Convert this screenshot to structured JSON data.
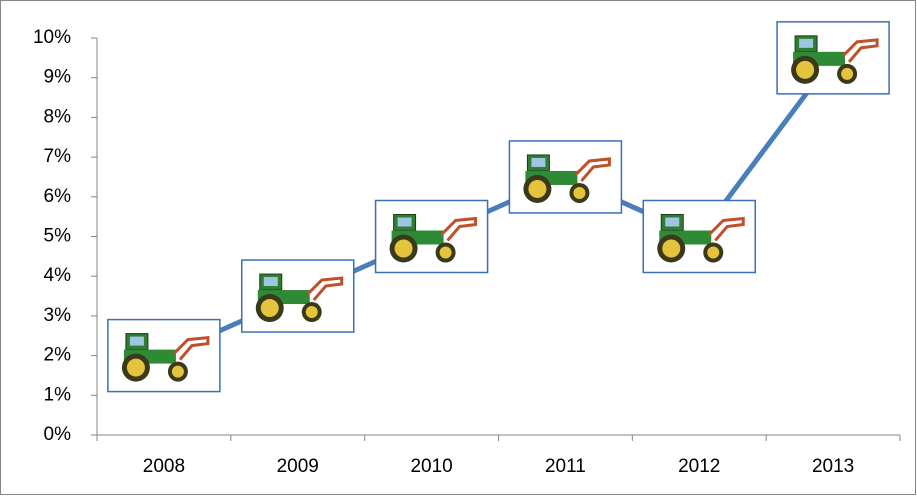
{
  "chart_data": {
    "type": "line",
    "categories": [
      "2008",
      "2009",
      "2010",
      "2011",
      "2012",
      "2013"
    ],
    "values": [
      2.0,
      3.5,
      5.0,
      6.5,
      5.0,
      9.5
    ],
    "color": "#4a7ebb",
    "marker_border_color": "#3a6fb8",
    "ylim": [
      0,
      10
    ],
    "yticks": [
      {
        "value": 0,
        "label": "0%"
      },
      {
        "value": 1,
        "label": "1%"
      },
      {
        "value": 2,
        "label": "2%"
      },
      {
        "value": 3,
        "label": "3%"
      },
      {
        "value": 4,
        "label": "4%"
      },
      {
        "value": 5,
        "label": "5%"
      },
      {
        "value": 6,
        "label": "6%"
      },
      {
        "value": 7,
        "label": "7%"
      },
      {
        "value": 8,
        "label": "8%"
      },
      {
        "value": 9,
        "label": "9%"
      },
      {
        "value": 10,
        "label": "10%"
      }
    ],
    "grid": false
  }
}
